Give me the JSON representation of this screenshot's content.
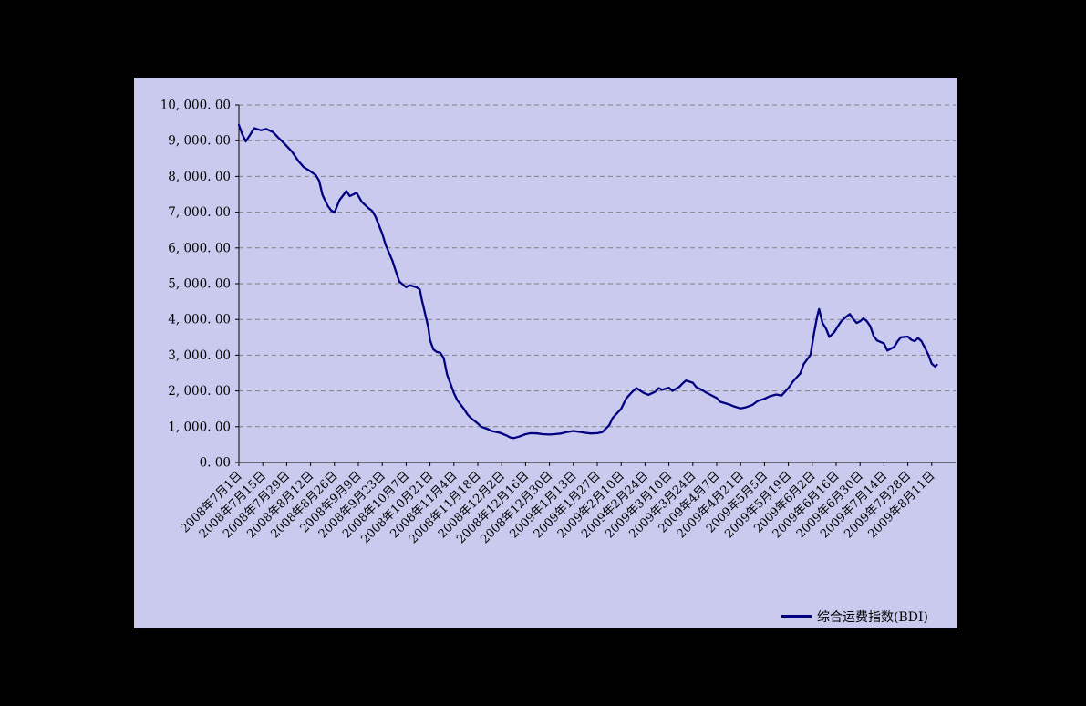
{
  "background_color": "#000000",
  "panel_color": "#cacaee",
  "legend": {
    "label": "综合运费指数(BDI)"
  },
  "chart_data": {
    "type": "line",
    "title": "",
    "xlabel": "",
    "ylabel": "",
    "ylim": [
      0,
      10000
    ],
    "xlim": [
      0,
      420
    ],
    "grid": "horizontal-dashed",
    "grid_color": "#808080",
    "axis_color": "#000000",
    "legend_position": "bottom-right",
    "yticks": [
      {
        "value": 0,
        "label": "0. 00"
      },
      {
        "value": 1000,
        "label": "1, 000. 00"
      },
      {
        "value": 2000,
        "label": "2, 000. 00"
      },
      {
        "value": 3000,
        "label": "3, 000. 00"
      },
      {
        "value": 4000,
        "label": "4, 000. 00"
      },
      {
        "value": 5000,
        "label": "5, 000. 00"
      },
      {
        "value": 6000,
        "label": "6, 000. 00"
      },
      {
        "value": 7000,
        "label": "7, 000. 00"
      },
      {
        "value": 8000,
        "label": "8, 000. 00"
      },
      {
        "value": 9000,
        "label": "9, 000. 00"
      },
      {
        "value": 10000,
        "label": "10, 000. 00"
      }
    ],
    "categories": [
      "2008年7月1日",
      "2008年7月15日",
      "2008年7月29日",
      "2008年8月12日",
      "2008年8月26日",
      "2008年9月9日",
      "2008年9月23日",
      "2008年10月7日",
      "2008年10月21日",
      "2008年11月4日",
      "2008年11月18日",
      "2008年12月2日",
      "2008年12月16日",
      "2008年12月30日",
      "2009年1月13日",
      "2009年1月27日",
      "2009年2月10日",
      "2009年2月24日",
      "2009年3月10日",
      "2009年3月24日",
      "2009年4月7日",
      "2009年4月21日",
      "2009年5月5日",
      "2009年5月19日",
      "2009年6月2日",
      "2009年6月16日",
      "2009年6月30日",
      "2009年7月14日",
      "2009年7月28日",
      "2009年8月11日"
    ],
    "category_days": [
      0,
      14,
      28,
      42,
      56,
      70,
      84,
      98,
      112,
      126,
      140,
      154,
      168,
      182,
      196,
      210,
      224,
      238,
      252,
      266,
      280,
      294,
      308,
      322,
      336,
      350,
      364,
      378,
      392,
      406
    ],
    "series": [
      {
        "name": "综合运费指数(BDI)",
        "color": "#000080",
        "points": [
          [
            0,
            9440
          ],
          [
            2,
            9180
          ],
          [
            4,
            8980
          ],
          [
            6,
            9120
          ],
          [
            9,
            9350
          ],
          [
            13,
            9290
          ],
          [
            16,
            9330
          ],
          [
            20,
            9240
          ],
          [
            23,
            9090
          ],
          [
            26,
            8950
          ],
          [
            28,
            8850
          ],
          [
            31,
            8700
          ],
          [
            35,
            8420
          ],
          [
            38,
            8260
          ],
          [
            42,
            8140
          ],
          [
            45,
            8040
          ],
          [
            47,
            7880
          ],
          [
            49,
            7480
          ],
          [
            52,
            7180
          ],
          [
            54,
            7050
          ],
          [
            56,
            6990
          ],
          [
            59,
            7340
          ],
          [
            63,
            7590
          ],
          [
            65,
            7450
          ],
          [
            69,
            7540
          ],
          [
            72,
            7290
          ],
          [
            76,
            7110
          ],
          [
            78,
            7040
          ],
          [
            80,
            6880
          ],
          [
            84,
            6400
          ],
          [
            86,
            6090
          ],
          [
            90,
            5640
          ],
          [
            92,
            5340
          ],
          [
            94,
            5060
          ],
          [
            98,
            4900
          ],
          [
            100,
            4960
          ],
          [
            104,
            4900
          ],
          [
            106,
            4840
          ],
          [
            107,
            4600
          ],
          [
            109,
            4180
          ],
          [
            111,
            3780
          ],
          [
            112,
            3420
          ],
          [
            114,
            3160
          ],
          [
            116,
            3090
          ],
          [
            118,
            3070
          ],
          [
            120,
            2920
          ],
          [
            122,
            2460
          ],
          [
            124,
            2200
          ],
          [
            126,
            1940
          ],
          [
            128,
            1740
          ],
          [
            132,
            1490
          ],
          [
            134,
            1340
          ],
          [
            136,
            1240
          ],
          [
            140,
            1090
          ],
          [
            142,
            1000
          ],
          [
            146,
            930
          ],
          [
            148,
            880
          ],
          [
            153,
            830
          ],
          [
            157,
            750
          ],
          [
            159,
            700
          ],
          [
            161,
            680
          ],
          [
            164,
            720
          ],
          [
            168,
            790
          ],
          [
            171,
            820
          ],
          [
            175,
            810
          ],
          [
            178,
            790
          ],
          [
            182,
            780
          ],
          [
            185,
            790
          ],
          [
            189,
            810
          ],
          [
            192,
            850
          ],
          [
            196,
            880
          ],
          [
            199,
            860
          ],
          [
            203,
            830
          ],
          [
            206,
            810
          ],
          [
            210,
            820
          ],
          [
            213,
            850
          ],
          [
            217,
            1040
          ],
          [
            219,
            1240
          ],
          [
            224,
            1500
          ],
          [
            227,
            1790
          ],
          [
            231,
            2000
          ],
          [
            233,
            2080
          ],
          [
            237,
            1950
          ],
          [
            240,
            1890
          ],
          [
            244,
            1980
          ],
          [
            246,
            2080
          ],
          [
            248,
            2030
          ],
          [
            252,
            2090
          ],
          [
            254,
            2000
          ],
          [
            258,
            2110
          ],
          [
            260,
            2210
          ],
          [
            262,
            2290
          ],
          [
            266,
            2230
          ],
          [
            268,
            2110
          ],
          [
            272,
            2010
          ],
          [
            274,
            1950
          ],
          [
            280,
            1800
          ],
          [
            282,
            1700
          ],
          [
            288,
            1610
          ],
          [
            290,
            1570
          ],
          [
            294,
            1510
          ],
          [
            297,
            1540
          ],
          [
            301,
            1610
          ],
          [
            304,
            1720
          ],
          [
            308,
            1780
          ],
          [
            311,
            1850
          ],
          [
            315,
            1900
          ],
          [
            318,
            1870
          ],
          [
            322,
            2080
          ],
          [
            325,
            2280
          ],
          [
            329,
            2490
          ],
          [
            331,
            2750
          ],
          [
            335,
            3010
          ],
          [
            337,
            3610
          ],
          [
            339,
            4110
          ],
          [
            340,
            4290
          ],
          [
            342,
            3900
          ],
          [
            344,
            3750
          ],
          [
            346,
            3510
          ],
          [
            349,
            3650
          ],
          [
            351,
            3810
          ],
          [
            353,
            3950
          ],
          [
            356,
            4080
          ],
          [
            358,
            4150
          ],
          [
            360,
            4010
          ],
          [
            362,
            3900
          ],
          [
            364,
            3950
          ],
          [
            366,
            4030
          ],
          [
            368,
            3950
          ],
          [
            370,
            3810
          ],
          [
            372,
            3530
          ],
          [
            374,
            3410
          ],
          [
            378,
            3330
          ],
          [
            380,
            3130
          ],
          [
            384,
            3230
          ],
          [
            386,
            3390
          ],
          [
            388,
            3500
          ],
          [
            392,
            3520
          ],
          [
            394,
            3430
          ],
          [
            396,
            3390
          ],
          [
            398,
            3480
          ],
          [
            400,
            3390
          ],
          [
            402,
            3210
          ],
          [
            404,
            3010
          ],
          [
            406,
            2760
          ],
          [
            408,
            2680
          ],
          [
            409,
            2730
          ]
        ]
      }
    ]
  }
}
